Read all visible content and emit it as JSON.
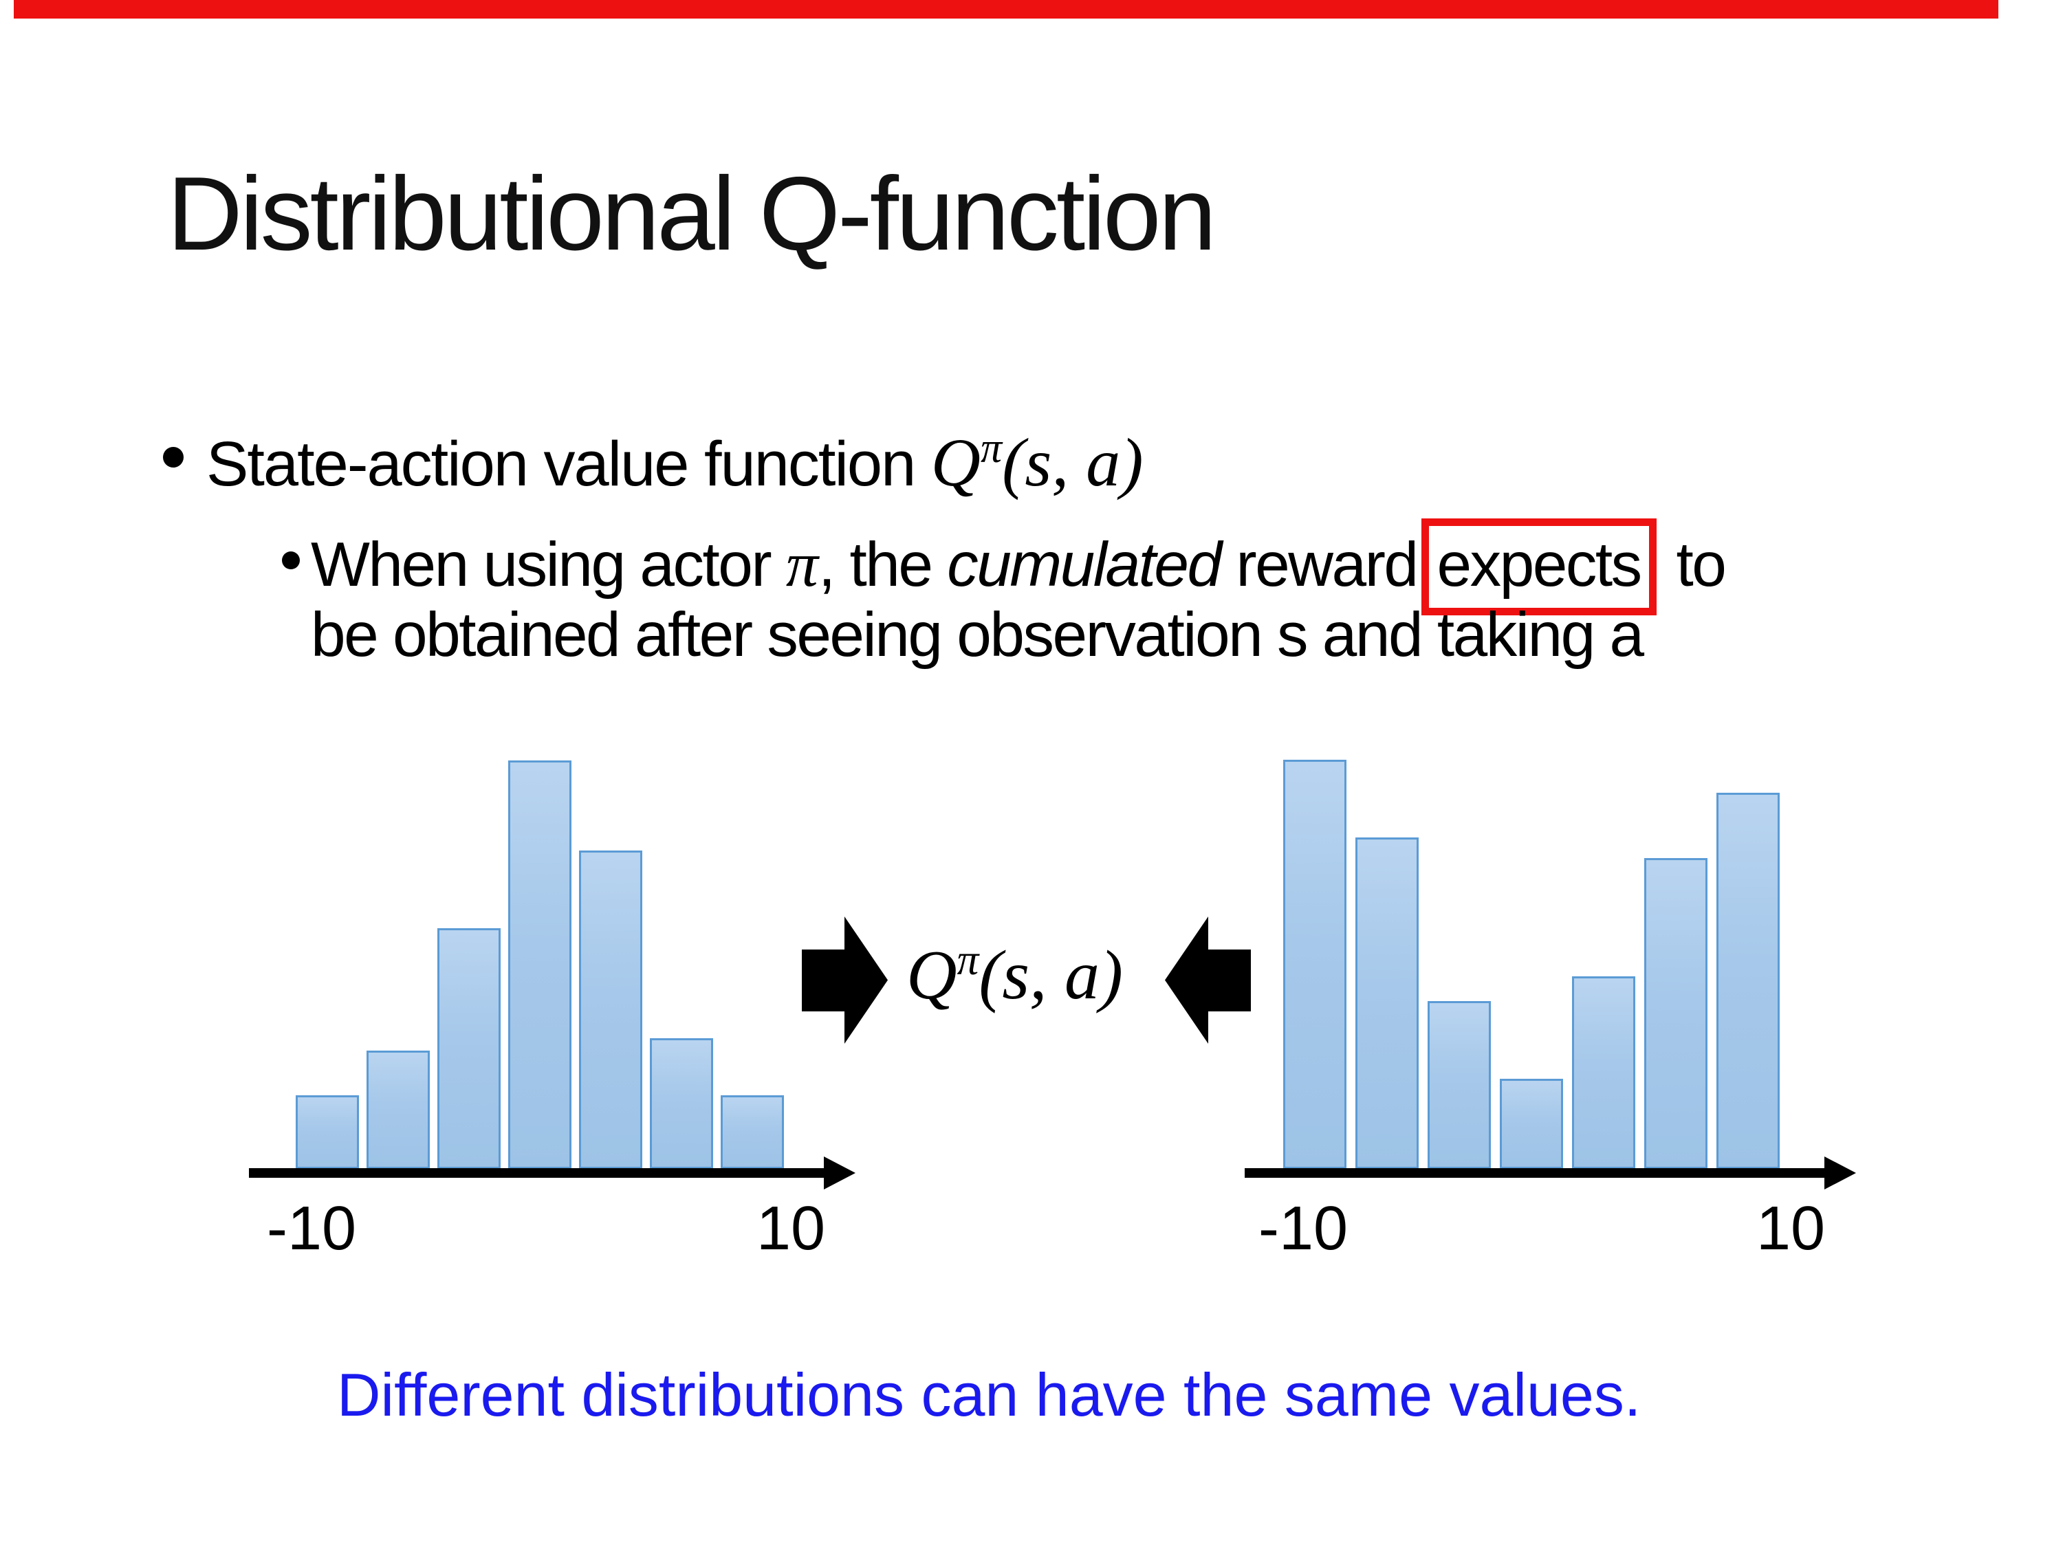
{
  "page": {
    "top_bar": {
      "color": "#ee1111"
    },
    "title": "Distributional Q-function",
    "bullets": {
      "level1_text": "State-action value function ",
      "formula": {
        "base": "Q",
        "sup": "π",
        "args": "(s, a)"
      },
      "sub": {
        "pre": "When using actor ",
        "pi": "π",
        "mid": ", the ",
        "emph": "cumulated",
        "post_emph": " reward",
        "boxed": "expects",
        "tail": " to",
        "line2": "be obtained after seeing observation s and taking a"
      }
    },
    "center_formula": {
      "base": "Q",
      "sup": "π",
      "args": "(s, a)"
    },
    "axis_labels": {
      "left_min": "-10",
      "left_max": "10",
      "right_min": "-10",
      "right_max": "10"
    },
    "caption": {
      "text": "Different distributions can have the same values.",
      "color": "#1a1aee"
    },
    "colors": {
      "bar_fill_top": "#b9d4f0",
      "bar_fill_bottom": "#9dc3e6",
      "bar_border": "#5b9bd5",
      "box_red": "#ee1111",
      "axis_black": "#000000",
      "caption_blue": "#1a1aee"
    }
  },
  "chart_data": [
    {
      "type": "bar",
      "title": "reward distribution (bell-shaped)",
      "x_axis": {
        "min_label": "-10",
        "max_label": "10"
      },
      "categories": [
        "b1",
        "b2",
        "b3",
        "b4",
        "b5",
        "b6",
        "b7"
      ],
      "values_relative": [
        0.18,
        0.29,
        0.59,
        1.0,
        0.78,
        0.32,
        0.18
      ],
      "xlim": [
        -10,
        10
      ],
      "grid": false,
      "legend": "none"
    },
    {
      "type": "bar",
      "title": "reward distribution (bimodal U-shaped)",
      "x_axis": {
        "min_label": "-10",
        "max_label": "10"
      },
      "categories": [
        "b1",
        "b2",
        "b3",
        "b4",
        "b5",
        "b6",
        "b7"
      ],
      "values_relative": [
        1.0,
        0.81,
        0.41,
        0.22,
        0.47,
        0.76,
        0.92
      ],
      "xlim": [
        -10,
        10
      ],
      "grid": false,
      "legend": "none"
    }
  ]
}
